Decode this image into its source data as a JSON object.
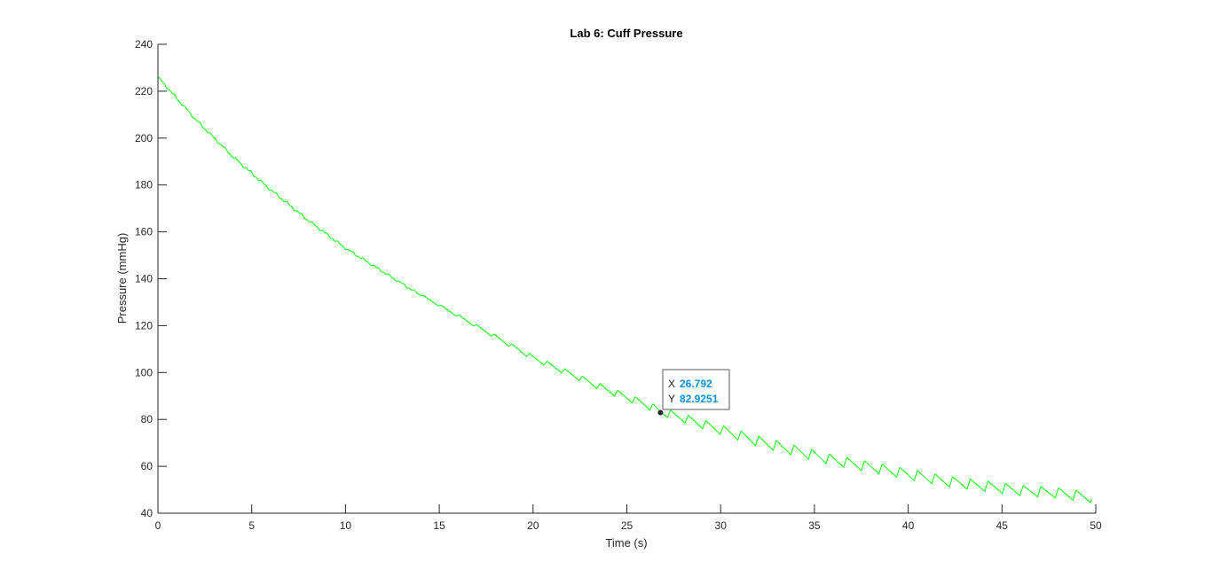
{
  "chart_data": {
    "type": "line",
    "title": "Lab 6: Cuff Pressure",
    "xlabel": "Time (s)",
    "ylabel": "Pressure (mmHg)",
    "xlim": [
      0,
      50
    ],
    "ylim": [
      40,
      240
    ],
    "xticks": [
      0,
      5,
      10,
      15,
      20,
      25,
      30,
      35,
      40,
      45,
      50
    ],
    "yticks": [
      40,
      60,
      80,
      100,
      120,
      140,
      160,
      180,
      200,
      220,
      240
    ],
    "grid": false,
    "line_color": "#00ff00",
    "series": [
      {
        "x": [
          0,
          2,
          4,
          6,
          8,
          10,
          12,
          14,
          16,
          18,
          20,
          22,
          24,
          26,
          26.792,
          28,
          30,
          32,
          34,
          36,
          38,
          40,
          42,
          44,
          46,
          48,
          49.8
        ],
        "y": [
          226,
          208,
          192,
          178,
          165,
          153,
          143,
          133,
          124,
          115,
          106,
          99,
          92,
          86,
          82.9251,
          80,
          75,
          70,
          66,
          62,
          59,
          56,
          53,
          51,
          49,
          48,
          46
        ],
        "oscillation": {
          "start_x": 14,
          "period_s": 0.94,
          "amplitude_mmHg": [
            0.8,
            4.5
          ]
        }
      }
    ],
    "datatip": {
      "x_label": "X",
      "x_value": "26.792",
      "y_label": "Y",
      "y_value": "82.9251",
      "x": 26.792,
      "y": 82.9251
    }
  }
}
